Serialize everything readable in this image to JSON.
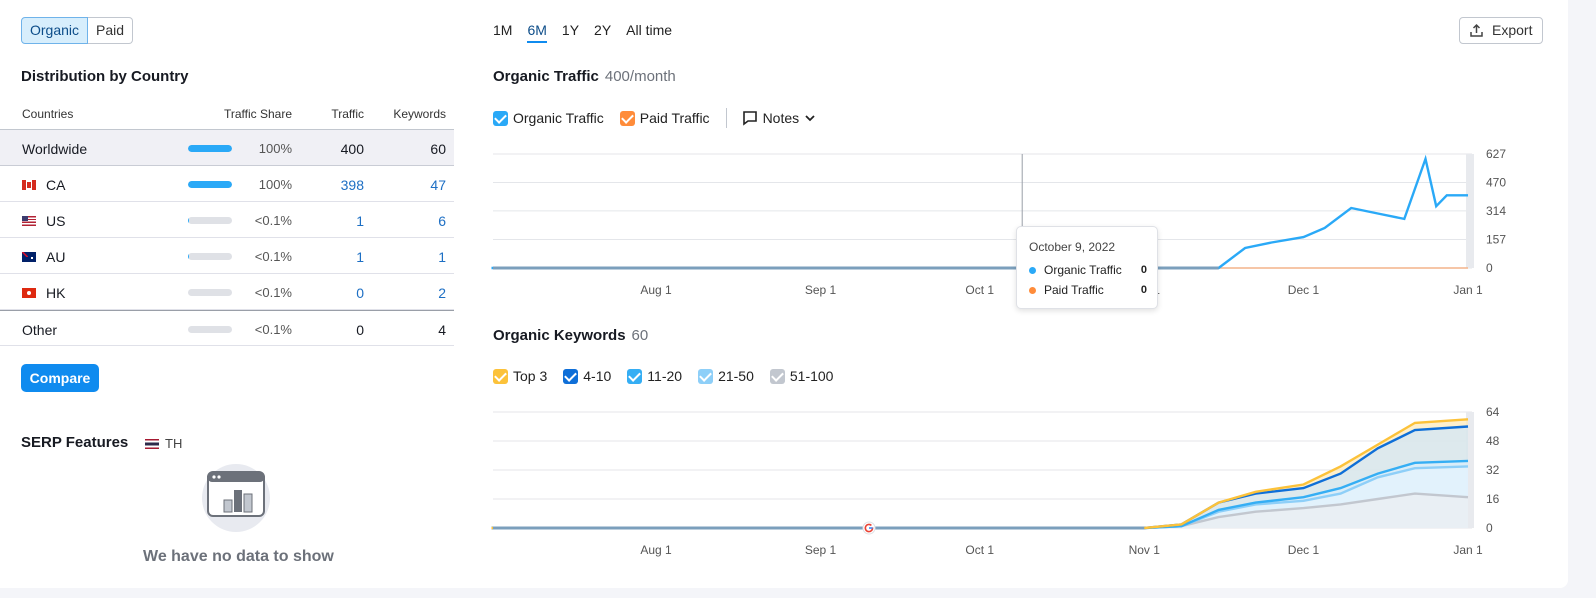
{
  "toggle": {
    "organic": "Organic",
    "paid": "Paid"
  },
  "distribution": {
    "title": "Distribution by Country",
    "headers": {
      "countries": "Countries",
      "share": "Traffic Share",
      "traffic": "Traffic",
      "keywords": "Keywords"
    },
    "rows": [
      {
        "name": "Worldwide",
        "share": "100%",
        "share_value": 1.0,
        "traffic": "400",
        "keywords": "60"
      },
      {
        "name": "CA",
        "share": "100%",
        "share_value": 1.0,
        "traffic": "398",
        "keywords": "47"
      },
      {
        "name": "US",
        "share": "<0.1%",
        "share_value": 0.02,
        "traffic": "1",
        "keywords": "6"
      },
      {
        "name": "AU",
        "share": "<0.1%",
        "share_value": 0.02,
        "traffic": "1",
        "keywords": "1"
      },
      {
        "name": "HK",
        "share": "<0.1%",
        "share_value": 0,
        "traffic": "0",
        "keywords": "2"
      },
      {
        "name": "Other",
        "share": "<0.1%",
        "share_value": 0,
        "traffic": "0",
        "keywords": "4"
      }
    ],
    "compare_label": "Compare"
  },
  "serp": {
    "title": "SERP Features",
    "country": "TH",
    "empty": "We have no data to show"
  },
  "periods": [
    "1M",
    "6M",
    "1Y",
    "2Y",
    "All time"
  ],
  "export_label": "Export",
  "traffic_chart": {
    "title": "Organic Traffic",
    "subtitle": "400/month",
    "legend": {
      "organic": "Organic Traffic",
      "paid": "Paid Traffic",
      "notes": "Notes"
    },
    "tooltip": {
      "date": "October 9, 2022",
      "organic_label": "Organic Traffic",
      "organic_value": "0",
      "paid_label": "Paid Traffic",
      "paid_value": "0"
    }
  },
  "keywords_chart": {
    "title": "Organic Keywords",
    "subtitle": "60",
    "legend": [
      "Top 3",
      "4-10",
      "11-20",
      "21-50",
      "51-100"
    ]
  },
  "colors": {
    "organic": "#2aa9f7",
    "paid": "#ff8c3a",
    "top3": "#fcc23a",
    "k4_10": "#0f6fd8",
    "k11_20": "#35aef4",
    "k21_50": "#8ecff8",
    "k51_100": "#c2c7cf",
    "accent": "#0f8bef"
  },
  "chart_data": [
    {
      "type": "line",
      "title": "Organic Traffic",
      "x": [
        "Jul 1",
        "Aug 1",
        "Sep 1",
        "Oct 1",
        "Oct 9",
        "Nov 1",
        "Nov 15",
        "Nov 20",
        "Nov 25",
        "Dec 1",
        "Dec 5",
        "Dec 10",
        "Dec 15",
        "Dec 20",
        "Dec 24",
        "Dec 26",
        "Dec 28",
        "Jan 1"
      ],
      "x_ticks": [
        "Aug 1",
        "Sep 1",
        "Oct 1",
        "Nov 1",
        "Dec 1",
        "Jan 1"
      ],
      "y_ticks": [
        0,
        157,
        314,
        470,
        627
      ],
      "ylim": [
        0,
        627
      ],
      "series": [
        {
          "name": "Organic Traffic",
          "values": [
            0,
            0,
            0,
            0,
            0,
            0,
            0,
            110,
            140,
            170,
            220,
            330,
            300,
            270,
            600,
            340,
            400,
            400
          ]
        },
        {
          "name": "Paid Traffic",
          "values": [
            0,
            0,
            0,
            0,
            0,
            0,
            0,
            0,
            0,
            0,
            0,
            0,
            0,
            0,
            0,
            0,
            0,
            0
          ]
        }
      ]
    },
    {
      "type": "area",
      "title": "Organic Keywords",
      "x": [
        "Jul 1",
        "Aug 1",
        "Sep 1",
        "Oct 1",
        "Nov 1",
        "Nov 8",
        "Nov 15",
        "Nov 22",
        "Dec 1",
        "Dec 8",
        "Dec 15",
        "Dec 22",
        "Jan 1"
      ],
      "x_ticks": [
        "Aug 1",
        "Sep 1",
        "Oct 1",
        "Nov 1",
        "Dec 1",
        "Jan 1"
      ],
      "y_ticks": [
        0,
        16,
        32,
        48,
        64
      ],
      "ylim": [
        0,
        64
      ],
      "series": [
        {
          "name": "Top 3",
          "values": [
            0,
            0,
            0,
            0,
            0,
            2,
            14,
            20,
            24,
            34,
            46,
            58,
            60
          ]
        },
        {
          "name": "4-10",
          "values": [
            0,
            0,
            0,
            0,
            0,
            2,
            14,
            19,
            22,
            30,
            44,
            54,
            56
          ]
        },
        {
          "name": "11-20",
          "values": [
            0,
            0,
            0,
            0,
            0,
            1,
            10,
            14,
            17,
            22,
            30,
            36,
            37
          ]
        },
        {
          "name": "21-50",
          "values": [
            0,
            0,
            0,
            0,
            0,
            1,
            9,
            13,
            15,
            19,
            28,
            33,
            34
          ]
        },
        {
          "name": "51-100",
          "values": [
            0,
            0,
            0,
            0,
            0,
            1,
            6,
            9,
            11,
            13,
            16,
            19,
            17
          ]
        }
      ]
    }
  ]
}
